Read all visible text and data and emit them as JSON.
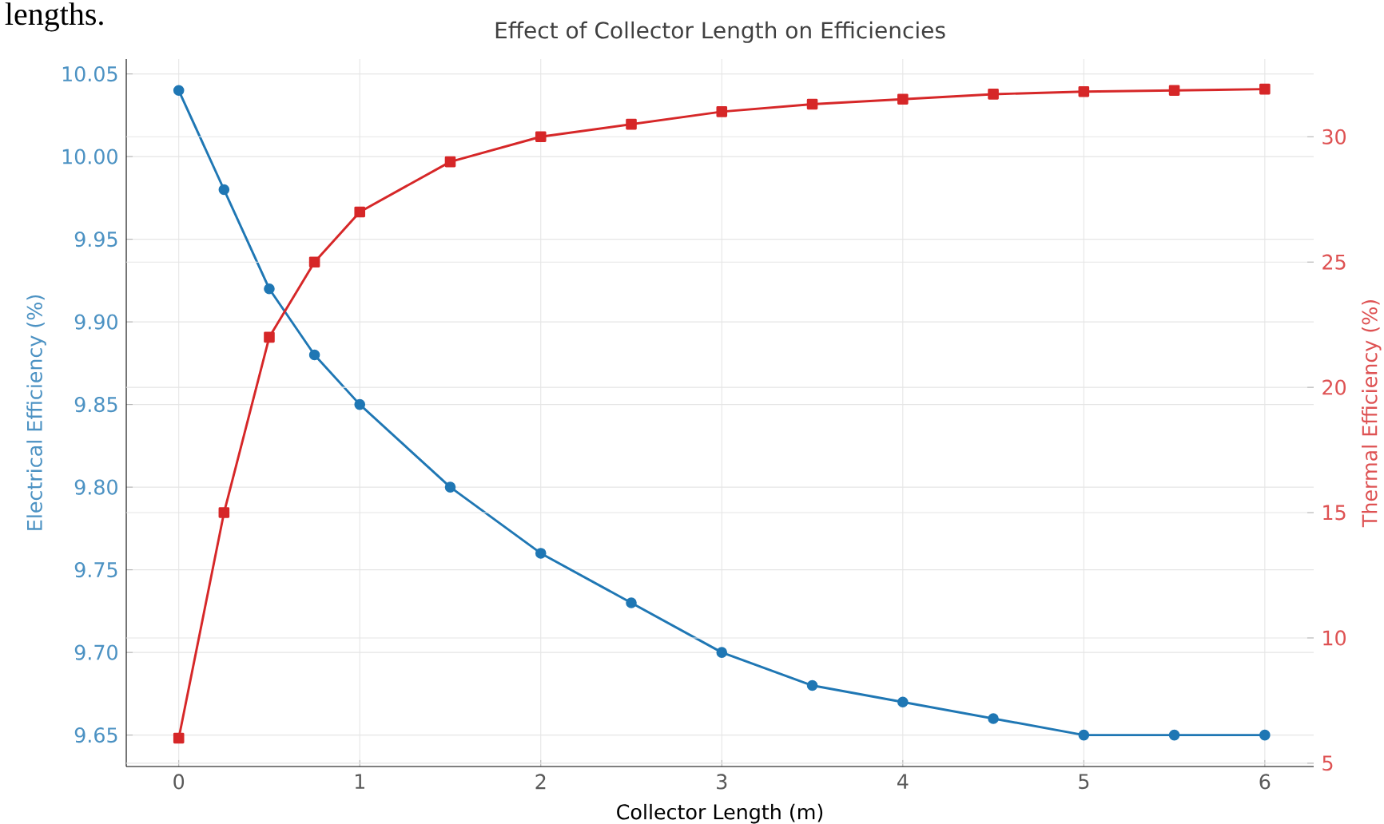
{
  "chart_data": {
    "type": "line",
    "title": "Effect of Collector Length on Efficiencies",
    "xlabel": "Collector Length (m)",
    "ylabel": "Electrical Efficiency (%)",
    "y2label": "Thermal Efficiency (%)",
    "annotations": [
      "lengths."
    ],
    "x": [
      0,
      0.25,
      0.5,
      0.75,
      1,
      1.5,
      2,
      2.5,
      3,
      3.5,
      4,
      4.5,
      5,
      5.5,
      6
    ],
    "xlim": [
      -0.29,
      6.27
    ],
    "xticks": [
      0,
      1,
      2,
      3,
      4,
      5,
      6
    ],
    "ylim": [
      9.631,
      10.059
    ],
    "yticks": [
      {
        "value": 9.65,
        "label": "9.65"
      },
      {
        "value": 9.7,
        "label": "9.70"
      },
      {
        "value": 9.75,
        "label": "9.75"
      },
      {
        "value": 9.8,
        "label": "9.80"
      },
      {
        "value": 9.85,
        "label": "9.85"
      },
      {
        "value": 9.9,
        "label": "9.90"
      },
      {
        "value": 9.95,
        "label": "9.95"
      },
      {
        "value": 10,
        "label": "10.00"
      },
      {
        "value": 10.05,
        "label": "10.05"
      }
    ],
    "y2lim": [
      4.87,
      33.1
    ],
    "y2ticks": [
      5,
      10,
      15,
      20,
      25,
      30
    ],
    "grid": true,
    "series": [
      {
        "color": "#1f77b4",
        "marker": "circle",
        "values": [
          10.04,
          9.98,
          9.92,
          9.88,
          9.85,
          9.8,
          9.76,
          9.73,
          9.7,
          9.68,
          9.67,
          9.66,
          9.65,
          9.65,
          9.65
        ]
      },
      {
        "color": "#d62728",
        "marker": "square",
        "axis": "y2",
        "values": [
          6,
          15,
          22,
          25,
          27,
          29,
          30,
          30.5,
          31,
          31.3,
          31.5,
          31.7,
          31.8,
          31.85,
          31.9
        ]
      }
    ]
  }
}
